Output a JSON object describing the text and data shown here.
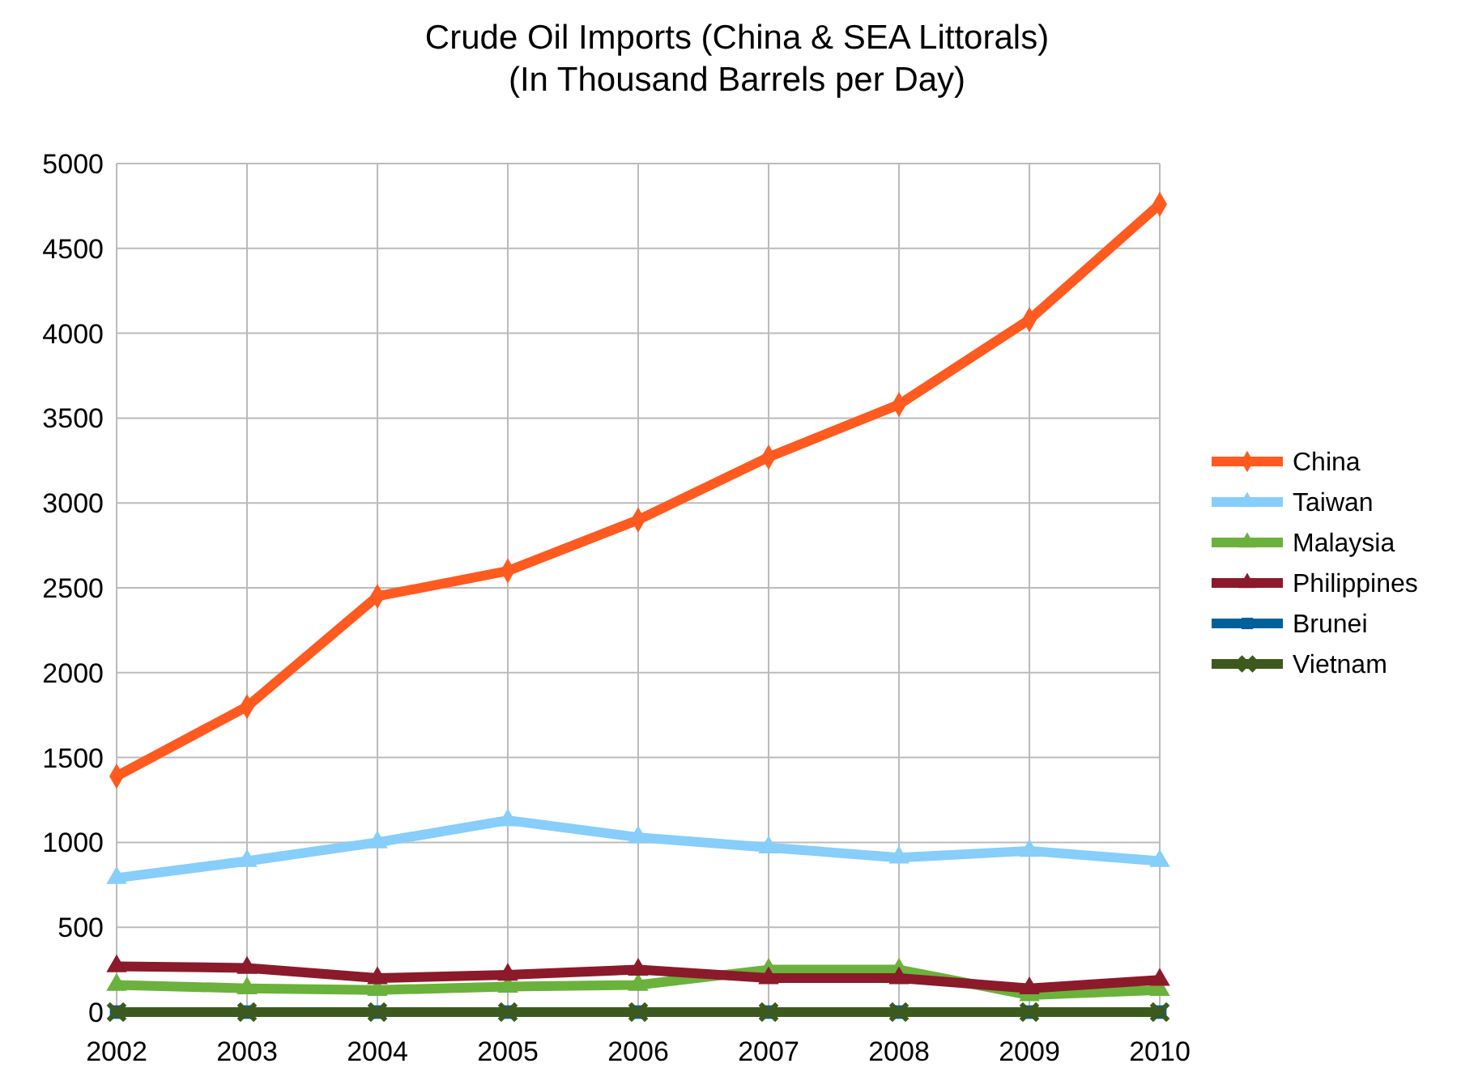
{
  "chart_data": {
    "type": "line",
    "title": "Crude Oil Imports (China & SEA Littorals)",
    "subtitle": "(In Thousand Barrels per Day)",
    "categories": [
      "2002",
      "2003",
      "2004",
      "2005",
      "2006",
      "2007",
      "2008",
      "2009",
      "2010"
    ],
    "series": [
      {
        "name": "China",
        "color": "#ff5a1f",
        "marker": "diamond",
        "values": [
          1390,
          1800,
          2450,
          2600,
          2900,
          3270,
          3580,
          4080,
          4760
        ]
      },
      {
        "name": "Taiwan",
        "color": "#87cefa",
        "marker": "triangle",
        "values": [
          790,
          890,
          1000,
          1130,
          1030,
          970,
          910,
          950,
          890
        ]
      },
      {
        "name": "Malaysia",
        "color": "#6ab23c",
        "marker": "triangle",
        "values": [
          160,
          140,
          130,
          150,
          160,
          250,
          250,
          100,
          130
        ]
      },
      {
        "name": "Philippines",
        "color": "#8b1a2b",
        "marker": "triangle",
        "values": [
          270,
          260,
          200,
          220,
          250,
          200,
          200,
          140,
          190
        ]
      },
      {
        "name": "Brunei",
        "color": "#00609a",
        "marker": "square",
        "values": [
          0,
          0,
          0,
          0,
          0,
          0,
          0,
          0,
          0
        ]
      },
      {
        "name": "Vietnam",
        "color": "#3d5a1e",
        "marker": "cross",
        "values": [
          0,
          0,
          0,
          0,
          0,
          0,
          0,
          0,
          0
        ]
      }
    ],
    "ylim": [
      0,
      5000
    ],
    "yticks": [
      0,
      500,
      1000,
      1500,
      2000,
      2500,
      3000,
      3500,
      4000,
      4500,
      5000
    ],
    "grid": true,
    "legend": "right",
    "line_style": "solid"
  }
}
